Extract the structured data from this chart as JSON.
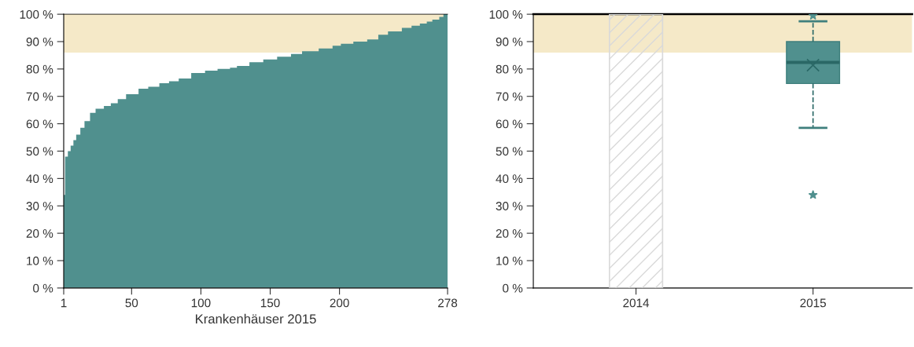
{
  "chart_data": [
    {
      "type": "area",
      "xlabel": "Krankenhäuser 2015",
      "color": "#50908e",
      "x": [
        1,
        2,
        4,
        6,
        8,
        10,
        13,
        16,
        20,
        24,
        30,
        35,
        40,
        46,
        55,
        62,
        70,
        77,
        84,
        93,
        103,
        112,
        121,
        126,
        135,
        145,
        155,
        165,
        173,
        185,
        195,
        201,
        210,
        220,
        228,
        235,
        245,
        252,
        258,
        263,
        267,
        272,
        275,
        278
      ],
      "values": [
        34,
        48,
        50,
        52,
        54,
        56,
        58.5,
        61,
        64,
        65.5,
        66.5,
        67.5,
        69,
        70.8,
        72.8,
        73.5,
        74.8,
        75.5,
        76.5,
        78.5,
        79.4,
        80,
        80.5,
        81.1,
        82.5,
        83.5,
        84.5,
        85.5,
        86.5,
        87.5,
        88.5,
        89.2,
        90,
        90.8,
        92.5,
        93.7,
        95,
        95.8,
        96.6,
        97.3,
        98,
        99,
        100,
        100
      ],
      "xlim": [
        1,
        278
      ],
      "xticks": [
        1,
        50,
        100,
        150,
        200,
        278
      ],
      "ylim": [
        0,
        100
      ],
      "yticks": [
        {
          "value": 0,
          "label": "0 %"
        },
        {
          "value": 10,
          "label": "10 %"
        },
        {
          "value": 20,
          "label": "20 %"
        },
        {
          "value": 30,
          "label": "30 %"
        },
        {
          "value": 40,
          "label": "40 %"
        },
        {
          "value": 50,
          "label": "50 %"
        },
        {
          "value": 60,
          "label": "60 %"
        },
        {
          "value": 70,
          "label": "70 %"
        },
        {
          "value": 80,
          "label": "80 %"
        },
        {
          "value": 90,
          "label": "90 %"
        },
        {
          "value": 100,
          "label": "100 %"
        }
      ],
      "bands": [
        {
          "axis": "y",
          "from": 86,
          "to": 100,
          "color": "#f5e9c8"
        }
      ]
    },
    {
      "type": "box",
      "categories": [
        "2014",
        "2015"
      ],
      "series": [
        {
          "type": "bar",
          "color": "#d9d9d9",
          "values": [
            100,
            null
          ]
        },
        {
          "type": "box",
          "color": "#50908e",
          "marker": "star",
          "boxes": [
            null,
            {
              "low": 58.5,
              "q1": 74.7,
              "median": 82.4,
              "q3": 90,
              "high": 97.4,
              "mean": 81.4,
              "outliers": [
                34,
                99.5
              ]
            }
          ]
        }
      ],
      "ylim": [
        0,
        100
      ],
      "yticks": [
        {
          "value": 0,
          "label": "0 %"
        },
        {
          "value": 10,
          "label": "10 %"
        },
        {
          "value": 20,
          "label": "20 %"
        },
        {
          "value": 30,
          "label": "30 %"
        },
        {
          "value": 40,
          "label": "40 %"
        },
        {
          "value": 50,
          "label": "50 %"
        },
        {
          "value": 60,
          "label": "60 %"
        },
        {
          "value": 70,
          "label": "70 %"
        },
        {
          "value": 80,
          "label": "80 %"
        },
        {
          "value": 90,
          "label": "90 %"
        },
        {
          "value": 100,
          "label": "100 %"
        }
      ],
      "bands": [
        {
          "axis": "y",
          "from": 86,
          "to": 100,
          "color": "#f5e9c8"
        }
      ]
    }
  ]
}
